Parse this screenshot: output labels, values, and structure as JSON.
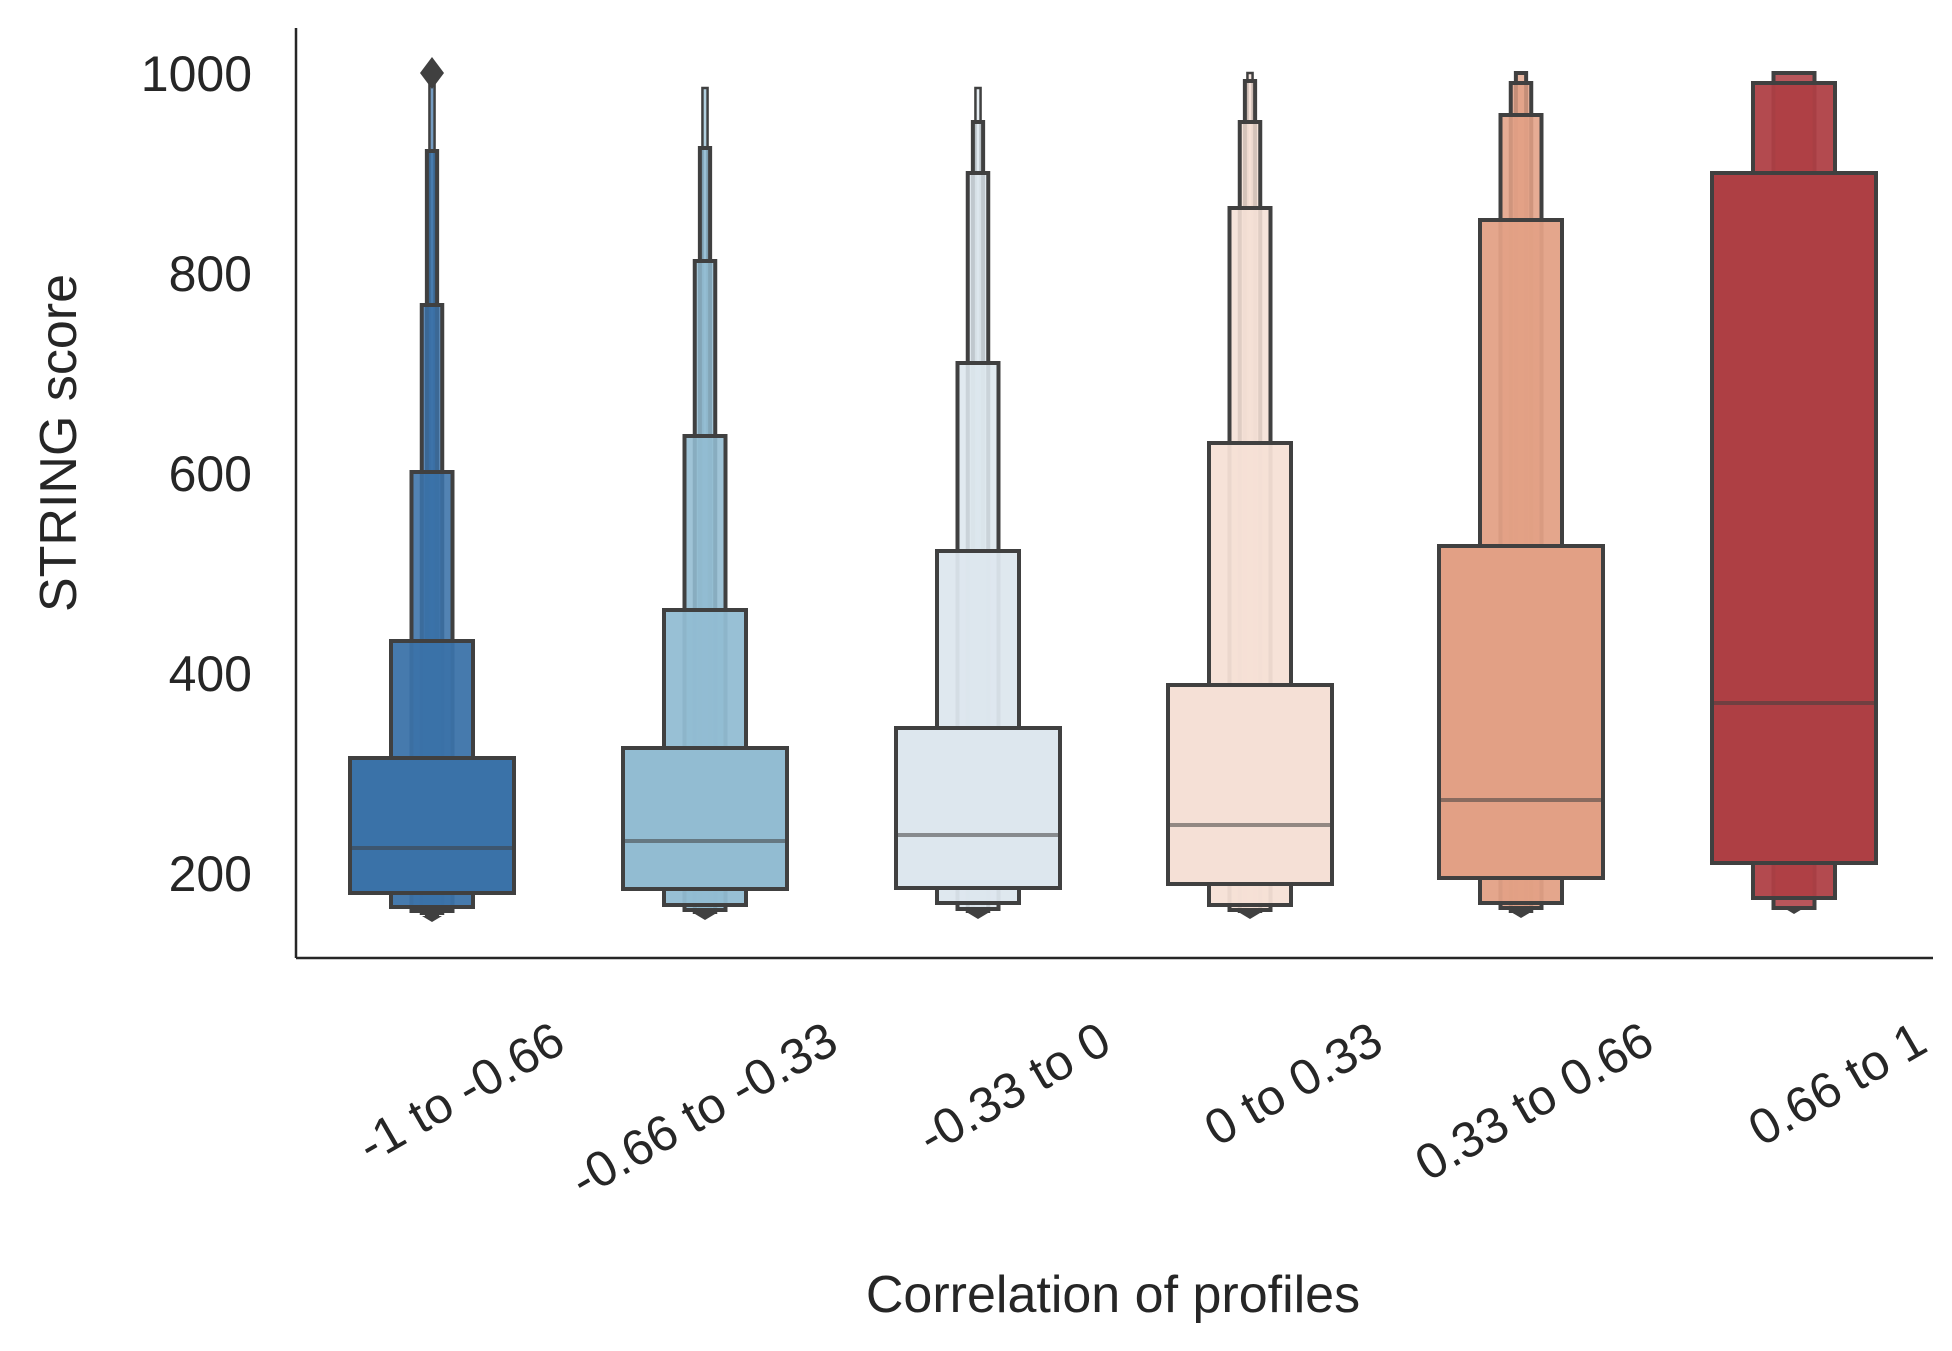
{
  "chart_data": {
    "type": "boxen",
    "xlabel": "Correlation of profiles",
    "ylabel": "STRING score",
    "ylim": [
      115,
      1045
    ],
    "yticks": [
      200,
      400,
      600,
      800,
      1000
    ],
    "grid": false,
    "categories": [
      "-1 to -0.66",
      "-0.66 to -0.33",
      "-0.33 to 0",
      "0 to 0.33",
      "0.33 to 0.66",
      "0.66 to 1"
    ],
    "colors": [
      "#3a72a8",
      "#92bcd2",
      "#dde7ee",
      "#f5e0d6",
      "#e2a085",
      "#ae3f44"
    ],
    "edge_color": "#404040",
    "series": [
      {
        "category": "-1 to -0.66",
        "median": 225,
        "boxes": [
          [
            180,
            315
          ],
          [
            166,
            432
          ],
          [
            162,
            601
          ],
          [
            160,
            768
          ],
          [
            158,
            922
          ],
          [
            157,
            990
          ]
        ],
        "outliers": [
          1000
        ]
      },
      {
        "category": "-0.66 to -0.33",
        "median": 232,
        "boxes": [
          [
            184,
            325
          ],
          [
            168,
            463
          ],
          [
            163,
            637
          ],
          [
            161,
            812
          ],
          [
            160,
            925
          ],
          [
            159,
            985
          ]
        ],
        "outliers": []
      },
      {
        "category": "-0.33 to 0",
        "median": 238,
        "boxes": [
          [
            185,
            345
          ],
          [
            170,
            522
          ],
          [
            164,
            710
          ],
          [
            162,
            900
          ],
          [
            161,
            951
          ],
          [
            160,
            985
          ]
        ],
        "outliers": []
      },
      {
        "category": "0 to 0.33",
        "median": 248,
        "boxes": [
          [
            189,
            388
          ],
          [
            168,
            630
          ],
          [
            163,
            865
          ],
          [
            162,
            951
          ],
          [
            161,
            992
          ],
          [
            160,
            1000
          ]
        ],
        "outliers": []
      },
      {
        "category": "0.33 to 0.66",
        "median": 273,
        "boxes": [
          [
            195,
            527
          ],
          [
            170,
            853
          ],
          [
            165,
            958
          ],
          [
            162,
            990
          ],
          [
            161,
            1000
          ]
        ],
        "outliers": []
      },
      {
        "category": "0.66 to 1",
        "median": 370,
        "boxes": [
          [
            210,
            900
          ],
          [
            175,
            990
          ],
          [
            165,
            1000
          ]
        ],
        "outliers": []
      }
    ]
  }
}
